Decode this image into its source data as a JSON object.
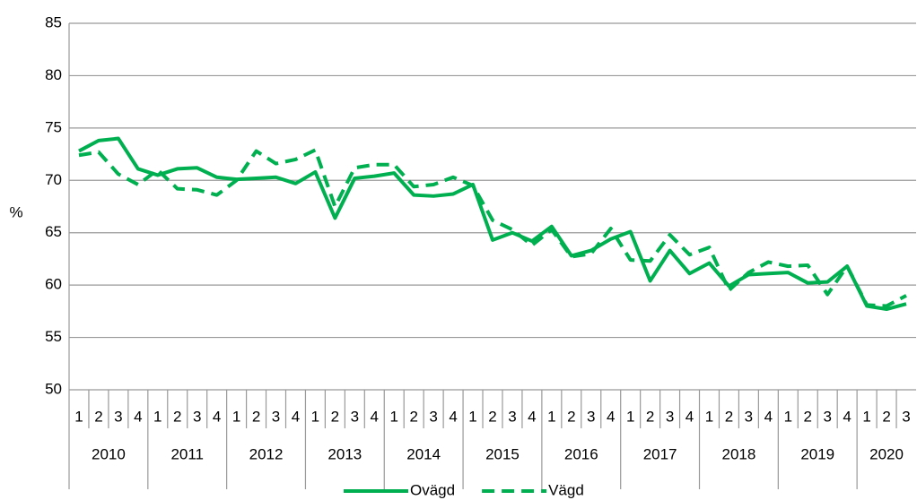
{
  "chart_data": {
    "type": "line",
    "ylabel": "%",
    "categories": [
      "1",
      "2",
      "3",
      "4",
      "1",
      "2",
      "3",
      "4",
      "1",
      "2",
      "3",
      "4",
      "1",
      "2",
      "3",
      "4",
      "1",
      "2",
      "3",
      "4",
      "1",
      "2",
      "3",
      "4",
      "1",
      "2",
      "3",
      "4",
      "1",
      "2",
      "3",
      "4",
      "1",
      "2",
      "3",
      "4",
      "1",
      "2",
      "3",
      "4",
      "1",
      "2",
      "3"
    ],
    "years": [
      "2010",
      "2011",
      "2012",
      "2013",
      "2014",
      "2015",
      "2016",
      "2017",
      "2018",
      "2019",
      "2020"
    ],
    "series": [
      {
        "name": "Ovägd",
        "color": "#00b050",
        "dashed": false,
        "values": [
          72.8,
          73.8,
          74.0,
          71.1,
          70.5,
          71.1,
          71.2,
          70.3,
          70.1,
          70.2,
          70.3,
          69.7,
          70.8,
          66.4,
          70.2,
          70.4,
          70.7,
          68.6,
          68.5,
          68.7,
          69.6,
          64.3,
          65.0,
          64.2,
          65.6,
          62.8,
          63.3,
          64.4,
          65.1,
          60.4,
          63.3,
          61.1,
          62.1,
          59.9,
          61.0,
          61.1,
          61.2,
          60.2,
          60.3,
          61.8,
          58.0,
          57.7,
          58.2
        ]
      },
      {
        "name": "Vägd",
        "color": "#00b050",
        "dashed": true,
        "values": [
          72.4,
          72.7,
          70.6,
          69.6,
          71.0,
          69.2,
          69.1,
          68.6,
          70.0,
          72.8,
          71.6,
          72.0,
          72.9,
          67.5,
          71.2,
          71.5,
          71.5,
          69.4,
          69.6,
          70.3,
          69.5,
          66.2,
          65.3,
          63.8,
          65.3,
          62.7,
          63.0,
          65.4,
          62.4,
          62.3,
          64.8,
          62.9,
          63.6,
          59.5,
          61.2,
          62.2,
          61.8,
          61.9,
          59.1,
          61.8,
          58.1,
          58.0,
          59.0
        ]
      }
    ],
    "ylim": [
      50,
      85
    ],
    "yticks": [
      50,
      55,
      60,
      65,
      70,
      75,
      80,
      85
    ],
    "grid": true,
    "legend": "bottom"
  }
}
